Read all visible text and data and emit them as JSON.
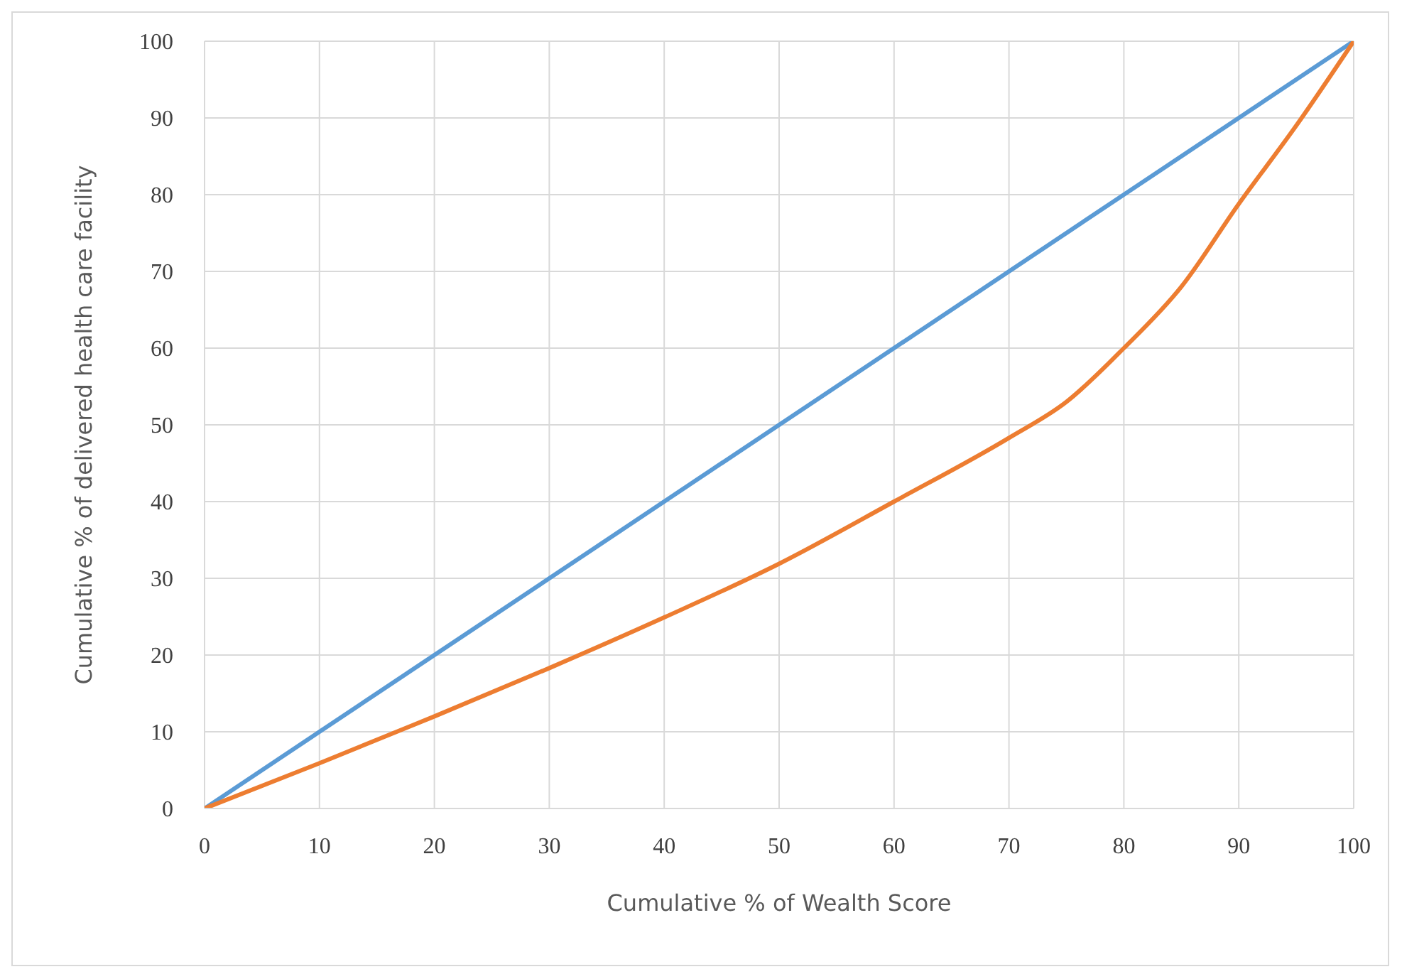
{
  "chart_data": {
    "type": "line",
    "xlabel": "Cumulative % of Wealth Score",
    "ylabel": "Cumulative % of delivered health care facility",
    "xlim": [
      0,
      100
    ],
    "xticks": [
      0,
      10,
      20,
      30,
      40,
      50,
      60,
      70,
      80,
      90,
      100
    ],
    "ylim": [
      0,
      100
    ],
    "yticks": [
      0,
      10,
      20,
      30,
      40,
      50,
      60,
      70,
      80,
      90,
      100
    ],
    "grid": true,
    "marker": "none",
    "line_style": "solid",
    "series": [
      {
        "color": "#5b9bd5",
        "x": [
          0,
          100
        ],
        "values": [
          0,
          100
        ]
      },
      {
        "color": "#ed7d31",
        "x": [
          0,
          10,
          20,
          30,
          40,
          50,
          60,
          70,
          75,
          80,
          85,
          90,
          95,
          100
        ],
        "values": [
          0,
          5.9,
          12,
          18.3,
          24.9,
          31.9,
          40,
          48.3,
          53,
          60,
          68,
          78.8,
          89,
          100
        ]
      }
    ]
  }
}
